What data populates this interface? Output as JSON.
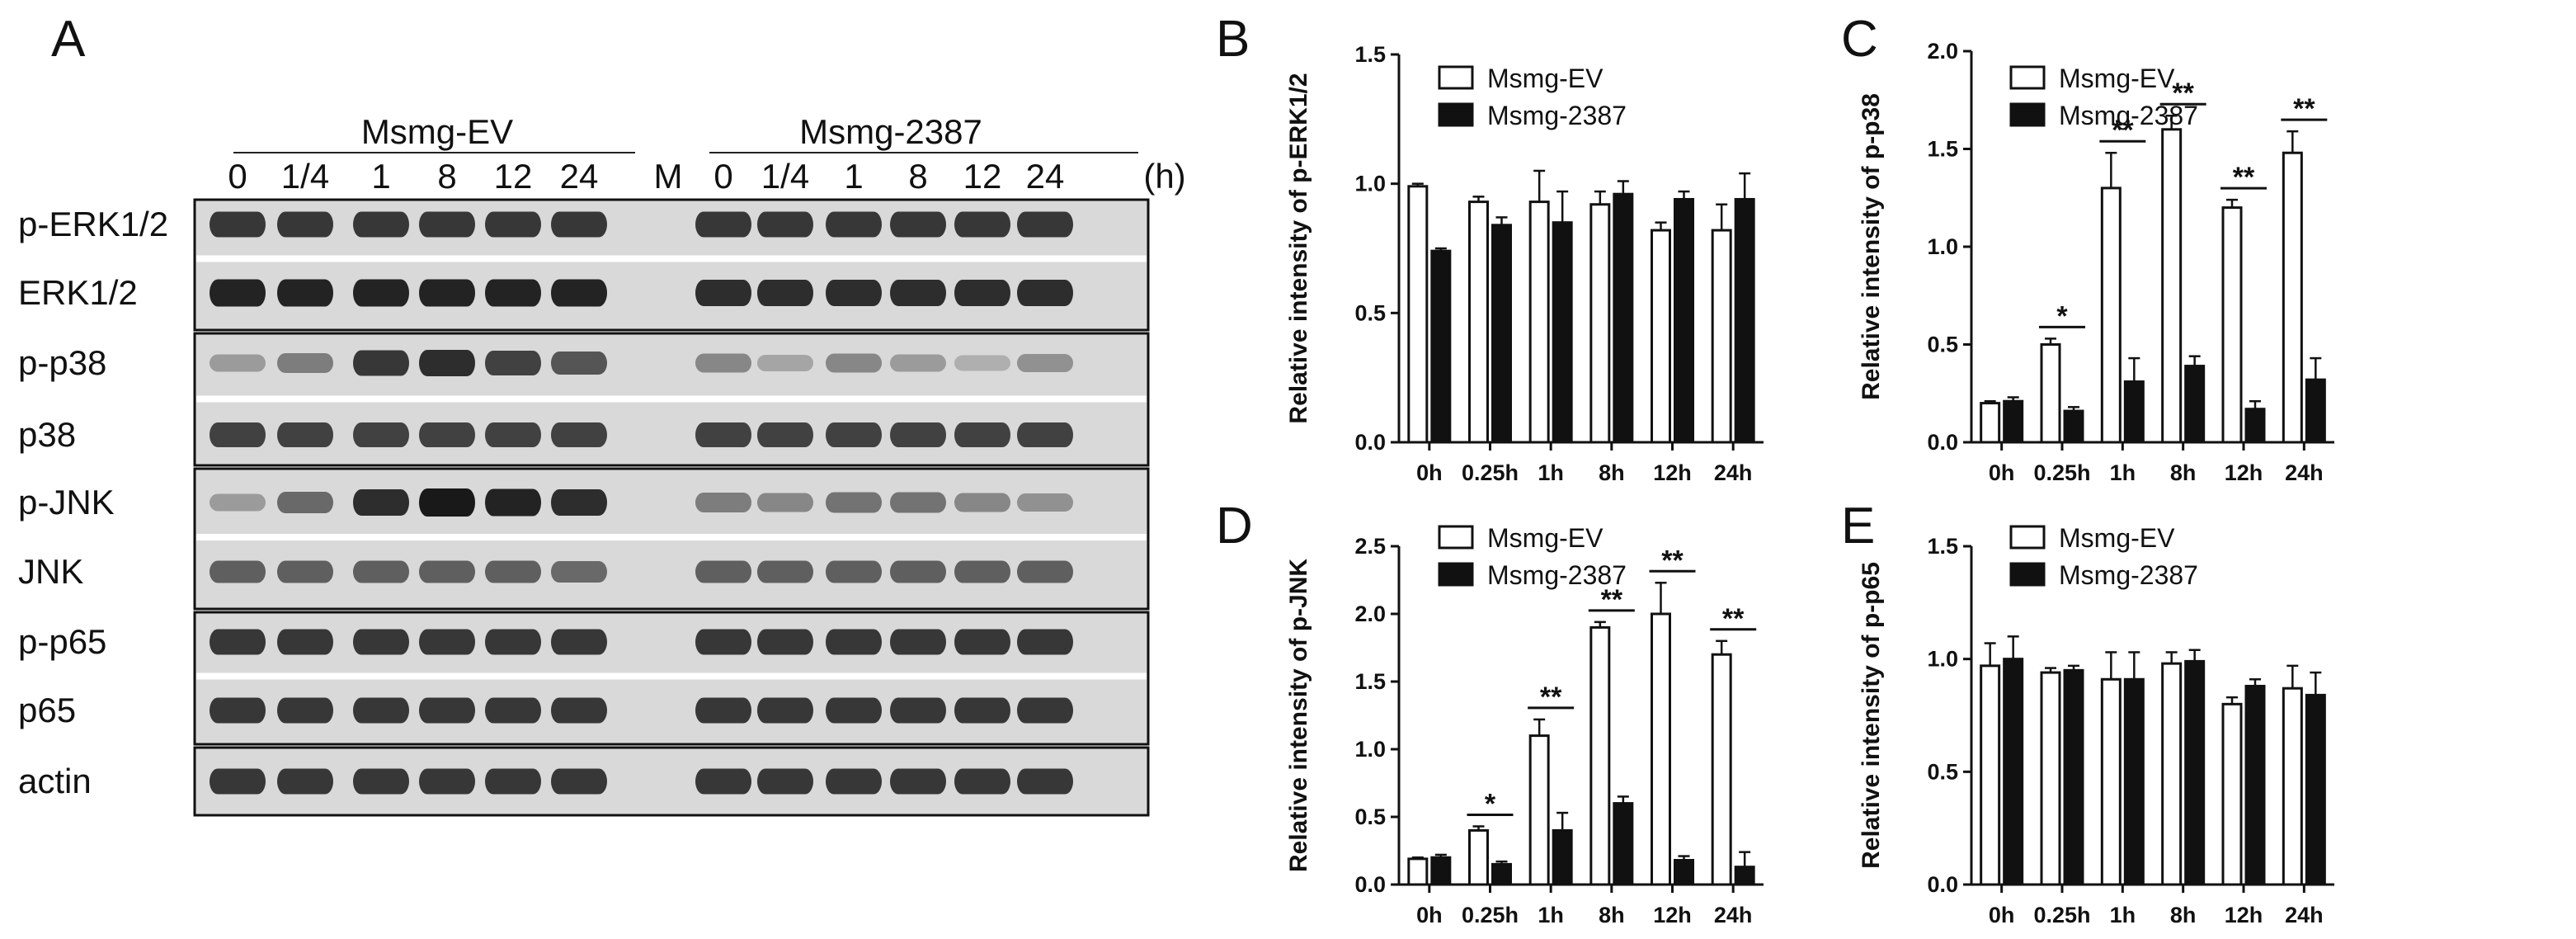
{
  "figure": {
    "panel_letters": [
      "A",
      "B",
      "C",
      "D",
      "E"
    ]
  },
  "blot": {
    "group_labels": [
      "Msmg-EV",
      "Msmg-2387"
    ],
    "lanes_left": [
      "0",
      "1/4",
      "1",
      "8",
      "12",
      "24"
    ],
    "marker": "M",
    "lanes_right": [
      "0",
      "1/4",
      "1",
      "8",
      "12",
      "24"
    ],
    "unit": "(h)",
    "row_labels": [
      "p-ERK1/2",
      "ERK1/2",
      "p-p38",
      "p38",
      "p-JNK",
      "JNK",
      "p-p65",
      "p65",
      "actin"
    ],
    "band_intensity": {
      "p-ERK1/2": [
        0.85,
        0.85,
        0.85,
        0.85,
        0.85,
        0.85,
        0.85,
        0.85,
        0.85,
        0.85,
        0.85,
        0.85
      ],
      "ERK1/2": [
        0.95,
        0.95,
        0.95,
        0.95,
        0.95,
        0.95,
        0.9,
        0.9,
        0.9,
        0.9,
        0.9,
        0.9
      ],
      "p-p38": [
        0.35,
        0.5,
        0.85,
        0.9,
        0.8,
        0.7,
        0.45,
        0.3,
        0.45,
        0.35,
        0.25,
        0.4
      ],
      "p38": [
        0.8,
        0.8,
        0.8,
        0.8,
        0.8,
        0.8,
        0.8,
        0.8,
        0.8,
        0.8,
        0.8,
        0.8
      ],
      "p-JNK": [
        0.35,
        0.6,
        0.9,
        1.0,
        0.95,
        0.9,
        0.5,
        0.45,
        0.55,
        0.55,
        0.45,
        0.4
      ],
      "JNK": [
        0.65,
        0.65,
        0.65,
        0.65,
        0.65,
        0.6,
        0.65,
        0.65,
        0.65,
        0.65,
        0.65,
        0.65
      ],
      "p-p65": [
        0.85,
        0.85,
        0.85,
        0.85,
        0.85,
        0.85,
        0.85,
        0.85,
        0.85,
        0.85,
        0.85,
        0.85
      ],
      "p65": [
        0.85,
        0.85,
        0.85,
        0.85,
        0.85,
        0.85,
        0.85,
        0.85,
        0.85,
        0.85,
        0.85,
        0.85
      ],
      "actin": [
        0.85,
        0.85,
        0.85,
        0.85,
        0.85,
        0.85,
        0.85,
        0.85,
        0.85,
        0.85,
        0.85,
        0.85
      ]
    }
  },
  "chart_data": [
    {
      "id": "B",
      "type": "bar",
      "categories": [
        "0h",
        "0.25h",
        "1h",
        "8h",
        "12h",
        "24h"
      ],
      "ylabel": "Relative intensity of p-ERK1/2",
      "ylim": [
        0,
        1.5
      ],
      "yticks": [
        "0.0",
        "0.5",
        "1.0",
        "1.5"
      ],
      "series": [
        {
          "name": "Msmg-EV",
          "fill": "open",
          "values": [
            0.99,
            0.93,
            0.93,
            0.92,
            0.82,
            0.82
          ],
          "errors": [
            0.01,
            0.02,
            0.12,
            0.05,
            0.03,
            0.1
          ]
        },
        {
          "name": "Msmg-2387",
          "fill": "solid",
          "values": [
            0.74,
            0.84,
            0.85,
            0.96,
            0.94,
            0.94
          ],
          "errors": [
            0.01,
            0.03,
            0.12,
            0.05,
            0.03,
            0.1
          ]
        }
      ],
      "significance": [
        "",
        "",
        "",
        "",
        "",
        ""
      ]
    },
    {
      "id": "C",
      "type": "bar",
      "categories": [
        "0h",
        "0.25h",
        "1h",
        "8h",
        "12h",
        "24h"
      ],
      "ylabel": "Relative intensity of p-p38",
      "ylim": [
        0,
        2.0
      ],
      "yticks": [
        "0.0",
        "0.5",
        "1.0",
        "1.5",
        "2.0"
      ],
      "series": [
        {
          "name": "Msmg-EV",
          "fill": "open",
          "values": [
            0.2,
            0.5,
            1.3,
            1.6,
            1.2,
            1.48
          ],
          "errors": [
            0.01,
            0.03,
            0.18,
            0.07,
            0.04,
            0.11
          ]
        },
        {
          "name": "Msmg-2387",
          "fill": "solid",
          "values": [
            0.21,
            0.16,
            0.31,
            0.39,
            0.17,
            0.32
          ],
          "errors": [
            0.02,
            0.02,
            0.12,
            0.05,
            0.04,
            0.11
          ]
        }
      ],
      "significance": [
        "",
        "*",
        "**",
        "**",
        "**",
        "**"
      ]
    },
    {
      "id": "D",
      "type": "bar",
      "categories": [
        "0h",
        "0.25h",
        "1h",
        "8h",
        "12h",
        "24h"
      ],
      "ylabel": "Relative intensity of p-JNK",
      "ylim": [
        0,
        2.5
      ],
      "yticks": [
        "0.0",
        "0.5",
        "1.0",
        "1.5",
        "2.0",
        "2.5"
      ],
      "series": [
        {
          "name": "Msmg-EV",
          "fill": "open",
          "values": [
            0.19,
            0.4,
            1.1,
            1.9,
            2.0,
            1.7
          ],
          "errors": [
            0.01,
            0.03,
            0.12,
            0.04,
            0.23,
            0.1
          ]
        },
        {
          "name": "Msmg-2387",
          "fill": "solid",
          "values": [
            0.2,
            0.15,
            0.4,
            0.6,
            0.18,
            0.13
          ],
          "errors": [
            0.02,
            0.02,
            0.13,
            0.05,
            0.03,
            0.11
          ]
        }
      ],
      "significance": [
        "",
        "*",
        "**",
        "**",
        "**",
        "**"
      ]
    },
    {
      "id": "E",
      "type": "bar",
      "categories": [
        "0h",
        "0.25h",
        "1h",
        "8h",
        "12h",
        "24h"
      ],
      "ylabel": "Relative intensity of p-p65",
      "ylim": [
        0,
        1.5
      ],
      "yticks": [
        "0.0",
        "0.5",
        "1.0",
        "1.5"
      ],
      "series": [
        {
          "name": "Msmg-EV",
          "fill": "open",
          "values": [
            0.97,
            0.94,
            0.91,
            0.98,
            0.8,
            0.87
          ],
          "errors": [
            0.1,
            0.02,
            0.12,
            0.05,
            0.03,
            0.1
          ]
        },
        {
          "name": "Msmg-2387",
          "fill": "solid",
          "values": [
            1.0,
            0.95,
            0.91,
            0.99,
            0.88,
            0.84
          ],
          "errors": [
            0.1,
            0.02,
            0.12,
            0.05,
            0.03,
            0.1
          ]
        }
      ],
      "significance": [
        "",
        "",
        "",
        "",
        "",
        ""
      ]
    }
  ]
}
